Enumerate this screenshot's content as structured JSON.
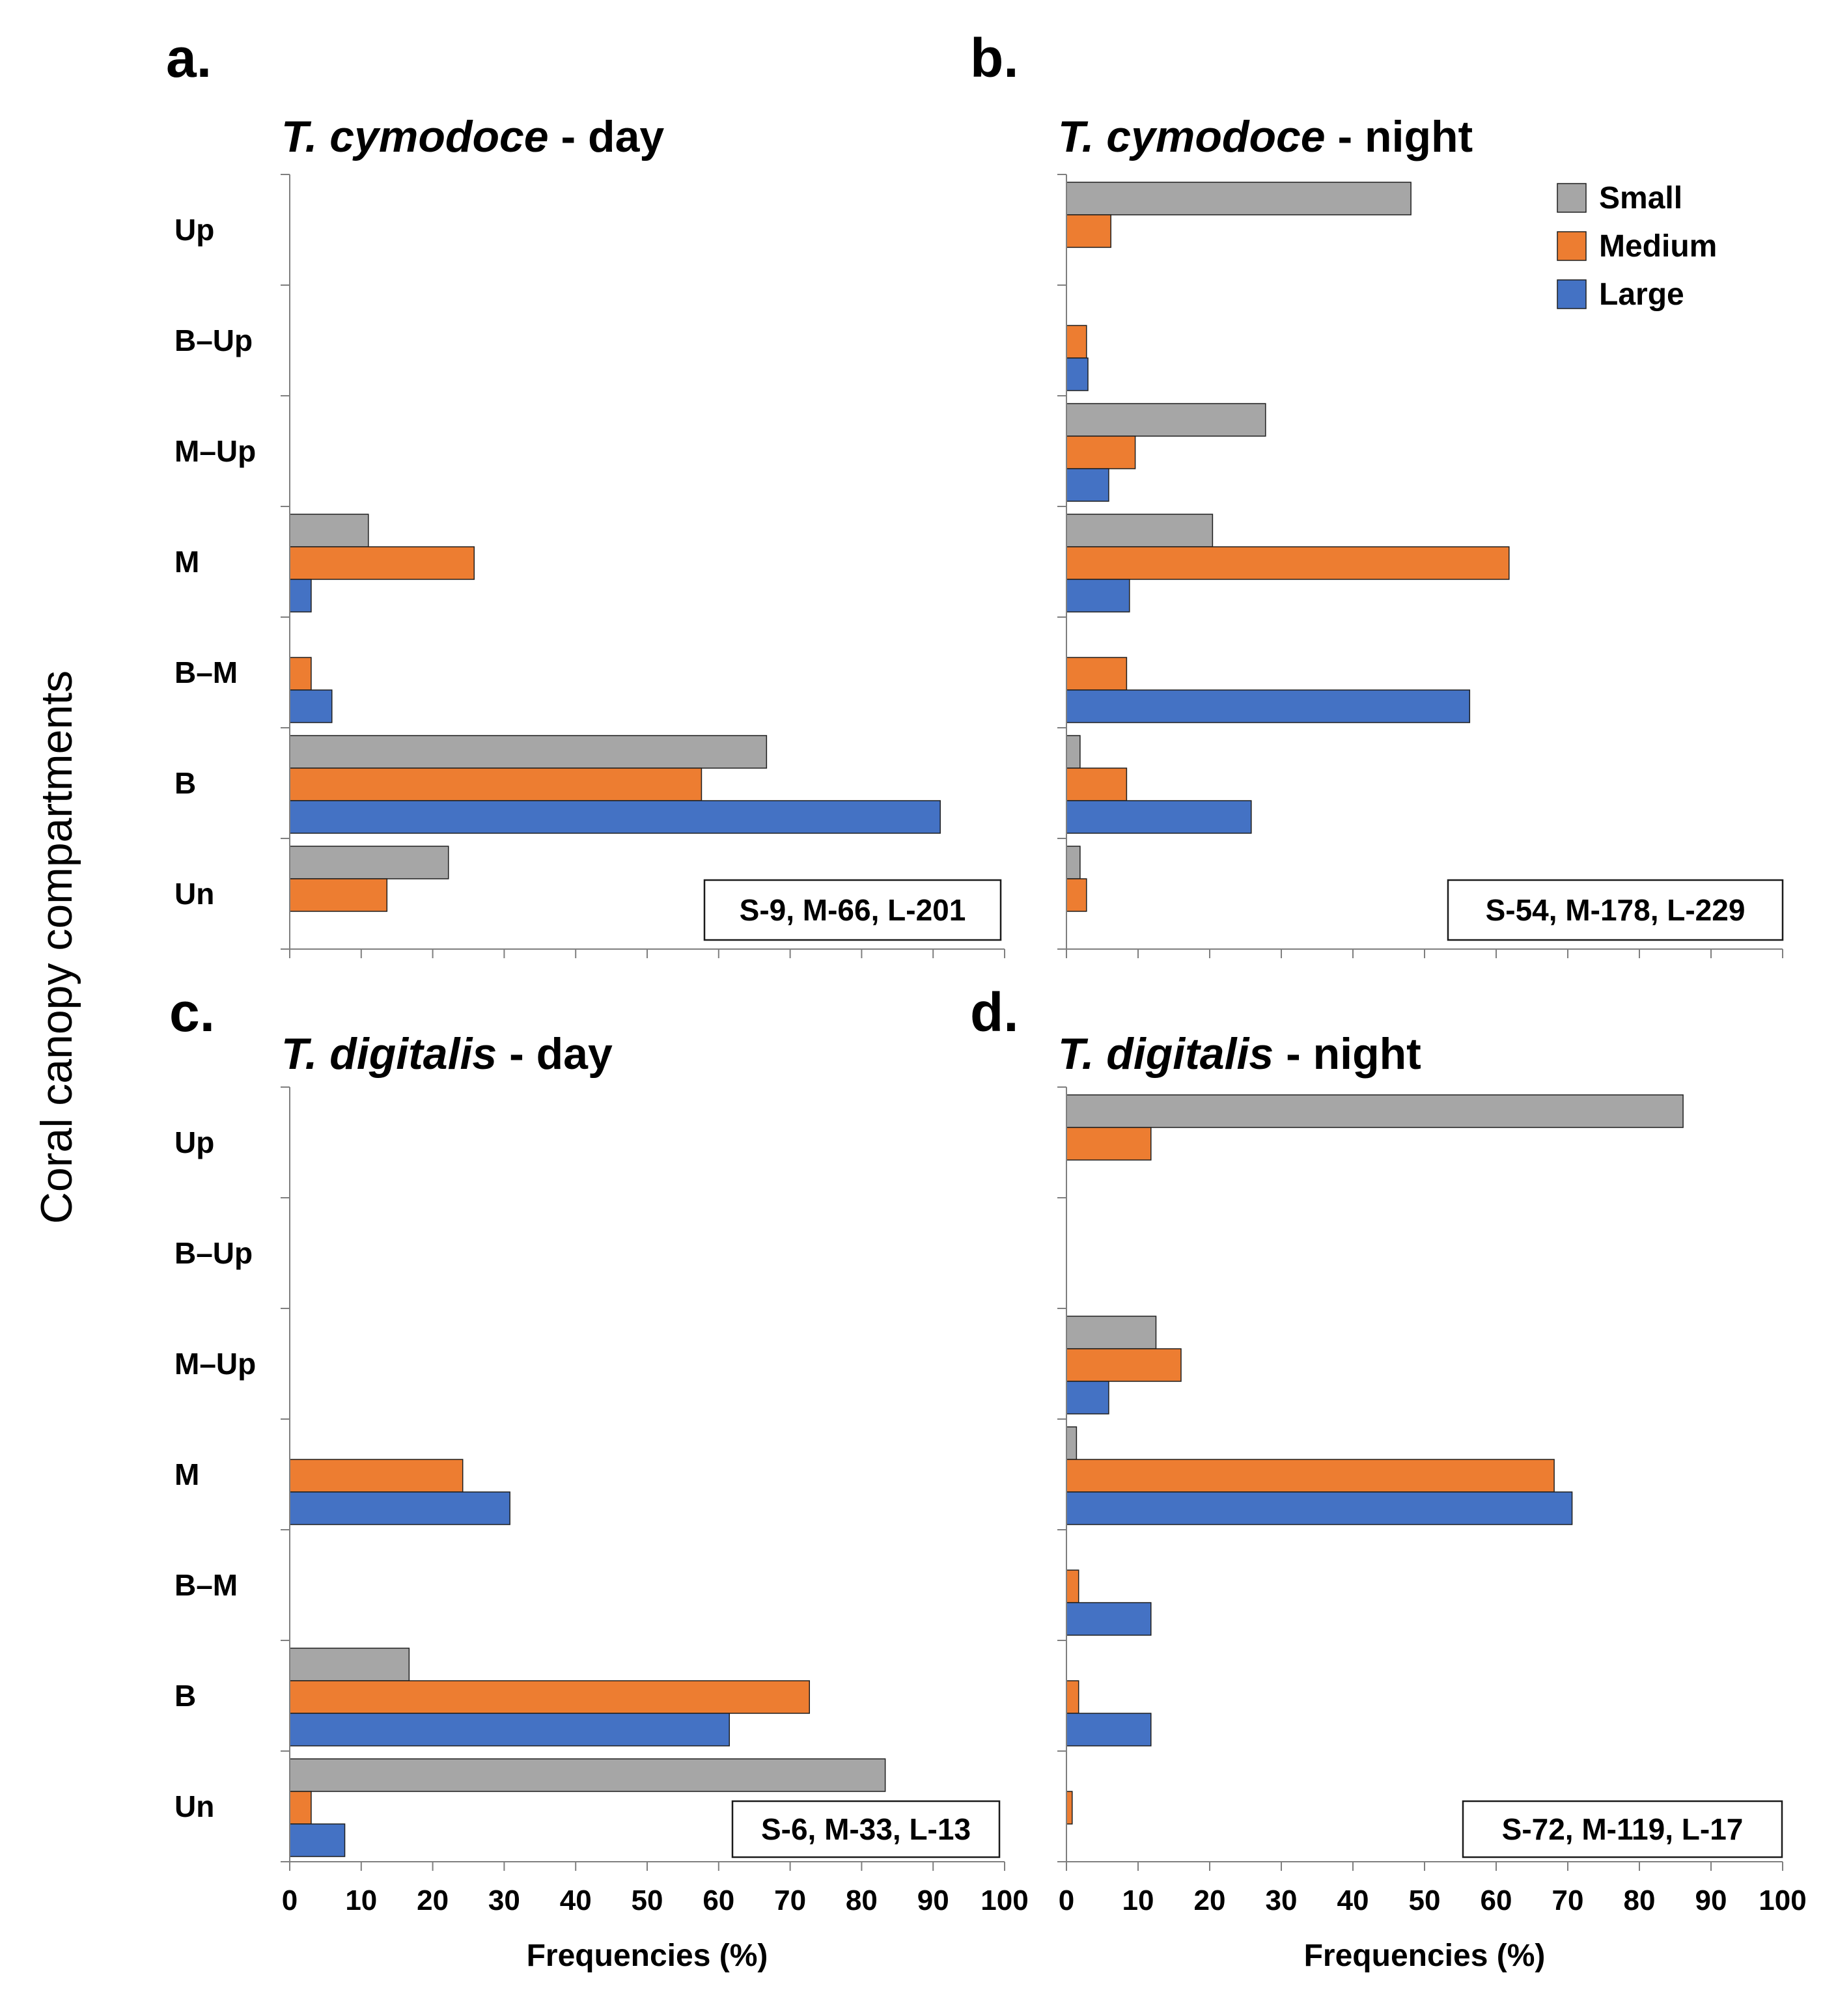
{
  "figure": {
    "y_axis_title": "Coral canopy compartments"
  },
  "legend": [
    {
      "name": "Small",
      "color": "#a6a6a6"
    },
    {
      "name": "Medium",
      "color": "#ed7d31"
    },
    {
      "name": "Large",
      "color": "#4472c4"
    }
  ],
  "chart_data": [
    {
      "type": "bar",
      "orientation": "horizontal",
      "panel": "a.",
      "title": "T. cymodoce - day",
      "title_species": "T. cymodoce",
      "title_suffix": " - day",
      "categories": [
        "Up",
        "B–Up",
        "M–Up",
        "M",
        "B–M",
        "B",
        "Un"
      ],
      "series": [
        {
          "name": "Small",
          "values": [
            0,
            0,
            0,
            11,
            0,
            66.7,
            22.2
          ]
        },
        {
          "name": "Medium",
          "values": [
            0,
            0,
            0,
            25.8,
            3,
            57.6,
            13.6
          ]
        },
        {
          "name": "Large",
          "values": [
            0,
            0,
            0,
            3,
            5.9,
            91,
            0
          ]
        }
      ],
      "xlim": [
        0,
        100
      ],
      "x_ticks": [
        0,
        10,
        20,
        30,
        40,
        50,
        60,
        70,
        80,
        90,
        100
      ],
      "show_tick_labels": false,
      "xlabel": "",
      "annotation": "S-9, M-66, L-201"
    },
    {
      "type": "bar",
      "orientation": "horizontal",
      "panel": "b.",
      "title": "T. cymodoce - night",
      "title_species": "T. cymodoce",
      "title_suffix": " - night",
      "categories": [
        "Up",
        "B–Up",
        "M–Up",
        "M",
        "B–M",
        "B",
        "Un"
      ],
      "series": [
        {
          "name": "Small",
          "values": [
            48.1,
            0,
            27.8,
            20.4,
            0,
            1.9,
            1.9
          ]
        },
        {
          "name": "Medium",
          "values": [
            6.2,
            2.8,
            9.6,
            61.8,
            8.4,
            8.4,
            2.8
          ]
        },
        {
          "name": "Large",
          "values": [
            0,
            3,
            5.9,
            8.8,
            56.3,
            25.8,
            0
          ]
        }
      ],
      "xlim": [
        0,
        100
      ],
      "x_ticks": [
        0,
        10,
        20,
        30,
        40,
        50,
        60,
        70,
        80,
        90,
        100
      ],
      "show_tick_labels": false,
      "xlabel": "",
      "annotation": "S-54, M-178, L-229",
      "legend": "top-right"
    },
    {
      "type": "bar",
      "orientation": "horizontal",
      "panel": "c.",
      "title": "T. digitalis - day",
      "title_species": "T. digitalis",
      "title_suffix": " - day",
      "categories": [
        "Up",
        "B–Up",
        "M–Up",
        "M",
        "B–M",
        "B",
        "Un"
      ],
      "series": [
        {
          "name": "Small",
          "values": [
            0,
            0,
            0,
            0,
            0,
            16.7,
            83.3
          ]
        },
        {
          "name": "Medium",
          "values": [
            0,
            0,
            0,
            24.2,
            0,
            72.7,
            3
          ]
        },
        {
          "name": "Large",
          "values": [
            0,
            0,
            0,
            30.8,
            0,
            61.5,
            7.7
          ]
        }
      ],
      "xlim": [
        0,
        100
      ],
      "x_ticks": [
        0,
        10,
        20,
        30,
        40,
        50,
        60,
        70,
        80,
        90,
        100
      ],
      "show_tick_labels": true,
      "xlabel": "Frequencies (%)",
      "annotation": "S-6, M-33, L-13"
    },
    {
      "type": "bar",
      "orientation": "horizontal",
      "panel": "d.",
      "title": "T. digitalis - night",
      "title_species": "T. digitalis",
      "title_suffix": " - night",
      "categories": [
        "Up",
        "B–Up",
        "M–Up",
        "M",
        "B–M",
        "B",
        "Un"
      ],
      "series": [
        {
          "name": "Small",
          "values": [
            86.1,
            0,
            12.5,
            1.4,
            0,
            0,
            0
          ]
        },
        {
          "name": "Medium",
          "values": [
            11.8,
            0,
            16,
            68.1,
            1.7,
            1.7,
            0.8
          ]
        },
        {
          "name": "Large",
          "values": [
            0,
            0,
            5.9,
            70.6,
            11.8,
            11.8,
            0
          ]
        }
      ],
      "xlim": [
        0,
        100
      ],
      "x_ticks": [
        0,
        10,
        20,
        30,
        40,
        50,
        60,
        70,
        80,
        90,
        100
      ],
      "show_tick_labels": true,
      "xlabel": "Frequencies (%)",
      "annotation": "S-72, M-119, L-17"
    }
  ]
}
